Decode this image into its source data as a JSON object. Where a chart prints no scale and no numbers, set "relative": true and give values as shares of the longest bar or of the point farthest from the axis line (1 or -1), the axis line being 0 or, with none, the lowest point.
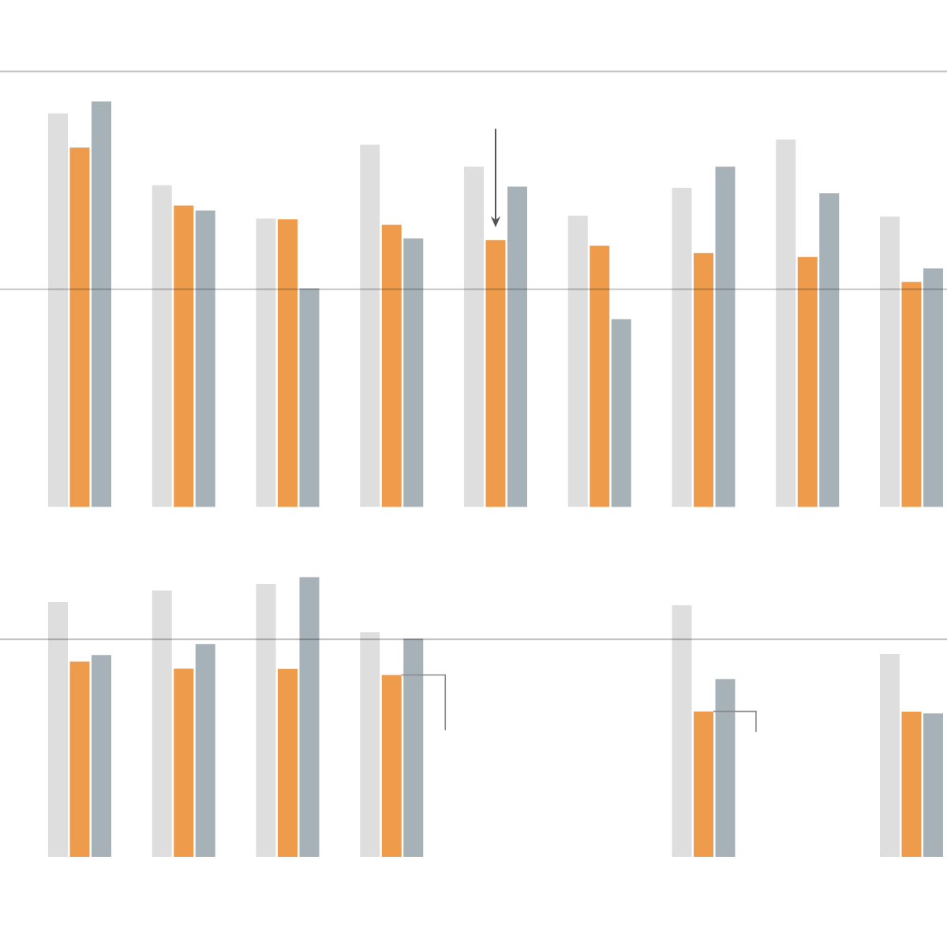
{
  "chart_data": [
    {
      "type": "bar",
      "categories": [
        null,
        null,
        null,
        null,
        null,
        null,
        null,
        null,
        null
      ],
      "relative": true,
      "series": [
        {
          "color": "#dedede",
          "values": [
            0.97,
            0.793,
            0.711,
            0.893,
            0.839,
            0.718,
            0.787,
            0.906,
            0.716
          ]
        },
        {
          "color": "#ee9c4c",
          "values": [
            0.886,
            0.743,
            0.709,
            0.696,
            0.658,
            0.644,
            0.626,
            0.616,
            0.555
          ]
        },
        {
          "color": "#a7b2b8",
          "values": [
            1,
            0.731,
            0.539,
            0.662,
            0.79,
            0.463,
            0.839,
            0.773,
            0.588
          ]
        }
      ],
      "ref_lines": [
        {
          "axis": "y",
          "value": 0.537
        },
        {
          "axis": "y",
          "value": 1.074
        }
      ]
    },
    {
      "type": "bar",
      "categories": [
        null,
        null,
        null,
        null,
        null,
        null,
        null,
        null,
        null
      ],
      "relative": true,
      "series": [
        {
          "color": "#dedede",
          "values": [
            0.911,
            0.952,
            0.976,
            0.803,
            null,
            null,
            0.899,
            null,
            0.725
          ]
        },
        {
          "color": "#ee9c4c",
          "values": [
            0.698,
            0.673,
            0.672,
            0.65,
            null,
            null,
            0.52,
            null,
            0.519
          ]
        },
        {
          "color": "#a7b2b8",
          "values": [
            0.721,
            0.761,
            1,
            0.78,
            null,
            null,
            0.635,
            null,
            0.513
          ]
        }
      ],
      "ref_lines": [
        {
          "axis": "y",
          "value": 0.778
        }
      ]
    }
  ]
}
